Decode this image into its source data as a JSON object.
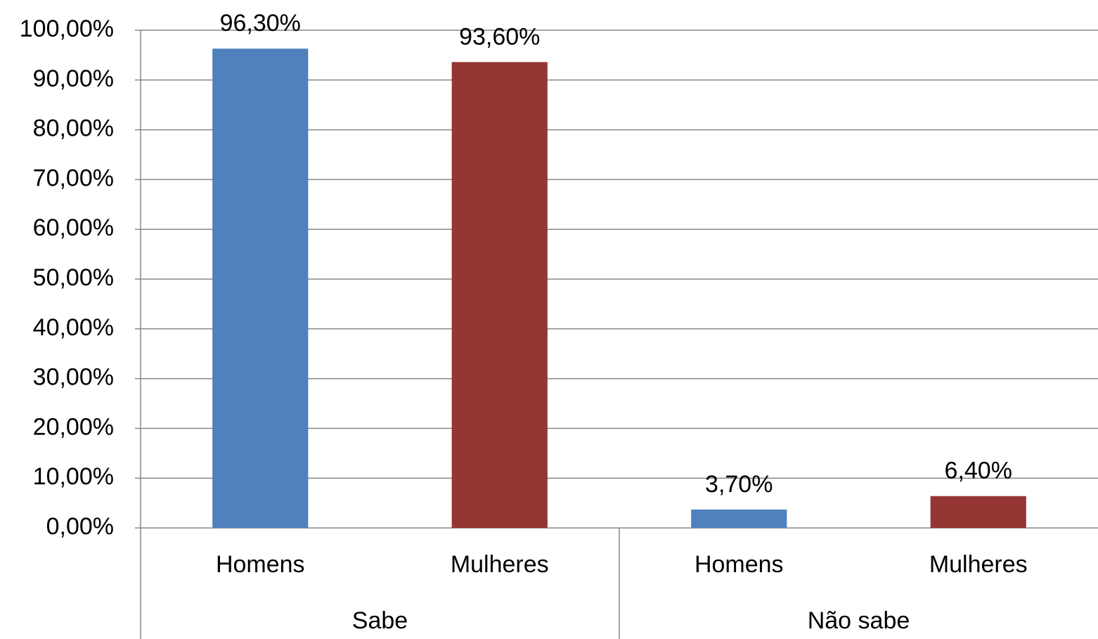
{
  "chart_data": {
    "type": "bar",
    "groups": [
      {
        "name": "Sabe",
        "categories": [
          "Homens",
          "Mulheres"
        ],
        "values": [
          96.3,
          93.6
        ],
        "value_labels": [
          "96,30%",
          "93,60%"
        ]
      },
      {
        "name": "Não sabe",
        "categories": [
          "Homens",
          "Mulheres"
        ],
        "values": [
          3.7,
          6.4
        ],
        "value_labels": [
          "3,70%",
          "6,40%"
        ]
      }
    ],
    "colors": [
      "#4f81bd",
      "#943634"
    ],
    "ylim": [
      0,
      100
    ],
    "yticks": [
      {
        "value": 0,
        "label": "0,00%"
      },
      {
        "value": 10,
        "label": "10,00%"
      },
      {
        "value": 20,
        "label": "20,00%"
      },
      {
        "value": 30,
        "label": "30,00%"
      },
      {
        "value": 40,
        "label": "40,00%"
      },
      {
        "value": 50,
        "label": "50,00%"
      },
      {
        "value": 60,
        "label": "60,00%"
      },
      {
        "value": 70,
        "label": "70,00%"
      },
      {
        "value": 80,
        "label": "80,00%"
      },
      {
        "value": 90,
        "label": "90,00%"
      },
      {
        "value": 100,
        "label": "100,00%"
      }
    ],
    "grid": true
  }
}
